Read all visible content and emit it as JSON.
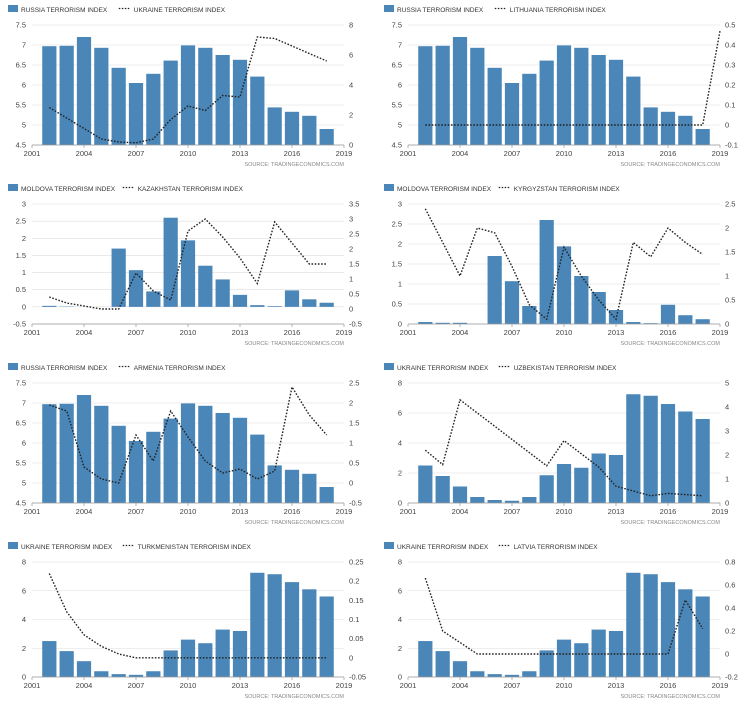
{
  "styles": {
    "bar_color": "#4a86b8",
    "line_color": "#222222",
    "axis_text": "#444444",
    "grid": "#dddddd",
    "source_text": "#888888"
  },
  "chart_data": [
    {
      "type": "bar+line",
      "legend": [
        "RUSSIA TERRORISM INDEX",
        "UKRAINE TERRORISM INDEX"
      ],
      "source": "SOURCE:  TRADINGECONOMICS.COM",
      "x_ticks": [
        "2001",
        "2004",
        "2007",
        "2010",
        "2013",
        "2016",
        "2019"
      ],
      "bars": {
        "name": "RUSSIA TERRORISM INDEX",
        "years": [
          2002,
          2003,
          2004,
          2005,
          2006,
          2007,
          2008,
          2009,
          2010,
          2011,
          2012,
          2013,
          2014,
          2015,
          2016,
          2017,
          2018
        ],
        "values": [
          6.97,
          6.98,
          7.2,
          6.93,
          6.43,
          6.05,
          6.28,
          6.61,
          6.99,
          6.93,
          6.75,
          6.63,
          6.21,
          5.44,
          5.33,
          5.23,
          4.9
        ]
      },
      "line": {
        "name": "UKRAINE TERRORISM INDEX",
        "years": [
          2002,
          2003,
          2004,
          2005,
          2006,
          2007,
          2008,
          2009,
          2010,
          2011,
          2012,
          2013,
          2014,
          2015,
          2016,
          2017,
          2018
        ],
        "values": [
          2.5,
          1.8,
          1.1,
          0.4,
          0.2,
          0.15,
          0.4,
          1.7,
          2.6,
          2.3,
          3.3,
          3.2,
          7.2,
          7.1,
          6.6,
          6.1,
          5.6
        ]
      },
      "left_axis": {
        "min": 4.5,
        "max": 7.5,
        "ticks": [
          "4.5",
          "5",
          "5.5",
          "6",
          "6.5",
          "7",
          "7.5"
        ]
      },
      "right_axis": {
        "min": 0,
        "max": 8,
        "ticks": [
          "0",
          "2",
          "4",
          "6",
          "8"
        ]
      }
    },
    {
      "type": "bar+line",
      "legend": [
        "RUSSIA TERRORISM INDEX",
        "LITHUANIA TERRORISM INDEX"
      ],
      "source": "SOURCE:  TRADINGECONOMICS.COM",
      "x_ticks": [
        "2001",
        "2004",
        "2007",
        "2010",
        "2013",
        "2016",
        "2019"
      ],
      "bars": {
        "name": "RUSSIA TERRORISM INDEX",
        "years": [
          2002,
          2003,
          2004,
          2005,
          2006,
          2007,
          2008,
          2009,
          2010,
          2011,
          2012,
          2013,
          2014,
          2015,
          2016,
          2017,
          2018
        ],
        "values": [
          6.97,
          6.98,
          7.2,
          6.93,
          6.43,
          6.05,
          6.28,
          6.61,
          6.99,
          6.93,
          6.75,
          6.63,
          6.21,
          5.44,
          5.33,
          5.23,
          4.9
        ]
      },
      "line": {
        "name": "LITHUANIA TERRORISM INDEX",
        "years": [
          2002,
          2003,
          2004,
          2005,
          2006,
          2007,
          2008,
          2009,
          2010,
          2011,
          2012,
          2013,
          2014,
          2015,
          2016,
          2017,
          2018,
          2019
        ],
        "values": [
          0,
          0,
          0,
          0,
          0,
          0,
          0,
          0,
          0,
          0,
          0,
          0,
          0,
          0,
          0,
          0,
          0,
          0.47
        ]
      },
      "left_axis": {
        "min": 4.5,
        "max": 7.5,
        "ticks": [
          "4.5",
          "5",
          "5.5",
          "6",
          "6.5",
          "7",
          "7.5"
        ]
      },
      "right_axis": {
        "min": -0.1,
        "max": 0.5,
        "ticks": [
          "-0.1",
          "0",
          "0.1",
          "0.2",
          "0.3",
          "0.4",
          "0.5"
        ]
      }
    },
    {
      "type": "bar+line",
      "legend": [
        "MOLDOVA TERRORISM INDEX",
        "KAZAKHSTAN TERRORISM INDEX"
      ],
      "source": "SOURCE:  TRADINGECONOMICS.COM",
      "x_ticks": [
        "2001",
        "2004",
        "2007",
        "2010",
        "2013",
        "2016",
        "2019"
      ],
      "bars": {
        "name": "MOLDOVA TERRORISM INDEX",
        "years": [
          2002,
          2003,
          2004,
          2005,
          2006,
          2007,
          2008,
          2009,
          2010,
          2011,
          2012,
          2013,
          2014,
          2015,
          2016,
          2017,
          2018
        ],
        "values": [
          0.03,
          0.01,
          0,
          0,
          1.7,
          1.07,
          0.45,
          2.6,
          1.94,
          1.2,
          0.8,
          0.35,
          0.05,
          0.02,
          0.48,
          0.22,
          0.12
        ]
      },
      "line": {
        "name": "KAZAKHSTAN TERRORISM INDEX",
        "years": [
          2002,
          2003,
          2004,
          2005,
          2006,
          2007,
          2008,
          2009,
          2010,
          2011,
          2012,
          2013,
          2014,
          2015,
          2016,
          2017,
          2018
        ],
        "values": [
          0.4,
          0.2,
          0.1,
          0,
          0,
          1.2,
          0.6,
          0.3,
          2.6,
          3.0,
          2.4,
          1.7,
          0.85,
          2.9,
          2.2,
          1.5,
          1.5
        ]
      },
      "left_axis": {
        "min": -0.5,
        "max": 3,
        "ticks": [
          "-0.5",
          "0",
          "0.5",
          "1",
          "1.5",
          "2",
          "2.5",
          "3"
        ]
      },
      "right_axis": {
        "min": -0.5,
        "max": 3.5,
        "ticks": [
          "-0.5",
          "0",
          "0.5",
          "1",
          "1.5",
          "2",
          "2.5",
          "3",
          "3.5"
        ]
      }
    },
    {
      "type": "bar+line",
      "legend": [
        "MOLDOVA TERRORISM INDEX",
        "KYRGYZSTAN TERRORISM INDEX"
      ],
      "source": "SOURCE:  TRADINGECONOMICS.COM",
      "x_ticks": [
        "2001",
        "2004",
        "2007",
        "2010",
        "2013",
        "2016",
        "2019"
      ],
      "bars": {
        "name": "MOLDOVA TERRORISM INDEX",
        "years": [
          2002,
          2003,
          2004,
          2005,
          2006,
          2007,
          2008,
          2009,
          2010,
          2011,
          2012,
          2013,
          2014,
          2015,
          2016,
          2017,
          2018
        ],
        "values": [
          0.05,
          0.03,
          0.03,
          0,
          1.7,
          1.07,
          0.45,
          2.6,
          1.94,
          1.2,
          0.8,
          0.35,
          0.05,
          0.02,
          0.48,
          0.22,
          0.12
        ]
      },
      "line": {
        "name": "KYRGYZSTAN TERRORISM INDEX",
        "years": [
          2002,
          2003,
          2004,
          2005,
          2006,
          2007,
          2008,
          2009,
          2010,
          2011,
          2012,
          2013,
          2014,
          2015,
          2016,
          2017,
          2018
        ],
        "values": [
          2.4,
          1.7,
          1.0,
          2.0,
          1.9,
          1.2,
          0.4,
          0.1,
          1.6,
          1.0,
          0.5,
          0.1,
          1.7,
          1.4,
          2.0,
          1.7,
          1.45
        ]
      },
      "left_axis": {
        "min": 0,
        "max": 3,
        "ticks": [
          "0",
          "0.5",
          "1",
          "1.5",
          "2",
          "2.5",
          "3"
        ]
      },
      "right_axis": {
        "min": 0,
        "max": 2.5,
        "ticks": [
          "0",
          "0.5",
          "1",
          "1.5",
          "2",
          "2.5"
        ]
      }
    },
    {
      "type": "bar+line",
      "legend": [
        "RUSSIA TERRORISM INDEX",
        "ARMENIA TERRORISM INDEX"
      ],
      "source": "SOURCE:  TRADINGECONOMICS.COM",
      "x_ticks": [
        "2001",
        "2004",
        "2007",
        "2010",
        "2013",
        "2016",
        "2019"
      ],
      "bars": {
        "name": "RUSSIA TERRORISM INDEX",
        "years": [
          2002,
          2003,
          2004,
          2005,
          2006,
          2007,
          2008,
          2009,
          2010,
          2011,
          2012,
          2013,
          2014,
          2015,
          2016,
          2017,
          2018
        ],
        "values": [
          6.97,
          6.98,
          7.2,
          6.93,
          6.43,
          6.05,
          6.28,
          6.61,
          6.99,
          6.93,
          6.75,
          6.63,
          6.21,
          5.44,
          5.33,
          5.23,
          4.9
        ]
      },
      "line": {
        "name": "ARMENIA TERRORISM INDEX",
        "years": [
          2002,
          2003,
          2004,
          2005,
          2006,
          2007,
          2008,
          2009,
          2010,
          2011,
          2012,
          2013,
          2014,
          2015,
          2016,
          2017,
          2018
        ],
        "values": [
          1.95,
          1.8,
          0.4,
          0.1,
          0,
          1.2,
          0.55,
          1.8,
          1.15,
          0.55,
          0.25,
          0.35,
          0.1,
          0.3,
          2.4,
          1.7,
          1.2
        ]
      },
      "left_axis": {
        "min": 4.5,
        "max": 7.5,
        "ticks": [
          "4.5",
          "5",
          "5.5",
          "6",
          "6.5",
          "7",
          "7.5"
        ]
      },
      "right_axis": {
        "min": -0.5,
        "max": 2.5,
        "ticks": [
          "-0.5",
          "0",
          "0.5",
          "1",
          "1.5",
          "2",
          "2.5"
        ]
      }
    },
    {
      "type": "bar+line",
      "legend": [
        "UKRAINE TERRORISM INDEX",
        "UZBEKISTAN TERRORISM INDEX"
      ],
      "source": "SOURCE:  TRADINGECONOMICS.COM",
      "x_ticks": [
        "2001",
        "2004",
        "2007",
        "2010",
        "2013",
        "2016",
        "2019"
      ],
      "bars": {
        "name": "UKRAINE TERRORISM INDEX",
        "years": [
          2002,
          2003,
          2004,
          2005,
          2006,
          2007,
          2008,
          2009,
          2010,
          2011,
          2012,
          2013,
          2014,
          2015,
          2016,
          2017,
          2018
        ],
        "values": [
          2.5,
          1.8,
          1.1,
          0.4,
          0.2,
          0.15,
          0.4,
          1.85,
          2.6,
          2.35,
          3.3,
          3.2,
          7.25,
          7.15,
          6.6,
          6.1,
          5.6
        ]
      },
      "line": {
        "name": "UZBEKISTAN TERRORISM INDEX",
        "years": [
          2002,
          2003,
          2004,
          2005,
          2006,
          2007,
          2008,
          2009,
          2010,
          2011,
          2012,
          2013,
          2014,
          2015,
          2016,
          2017,
          2018
        ],
        "values": [
          2.2,
          1.6,
          4.3,
          3.75,
          3.2,
          2.65,
          2.1,
          1.55,
          2.6,
          2.05,
          1.5,
          0.7,
          0.5,
          0.3,
          0.4,
          0.35,
          0.3
        ]
      },
      "left_axis": {
        "min": 0,
        "max": 8,
        "ticks": [
          "0",
          "2",
          "4",
          "6",
          "8"
        ]
      },
      "right_axis": {
        "min": 0,
        "max": 5,
        "ticks": [
          "0",
          "1",
          "2",
          "3",
          "4",
          "5"
        ]
      }
    },
    {
      "type": "bar+line",
      "legend": [
        "UKRAINE TERRORISM INDEX",
        "TURKMENISTAN TERRORISM INDEX"
      ],
      "source": "SOURCE:  TRADINGECONOMICS.COM",
      "x_ticks": [
        "2001",
        "2004",
        "2007",
        "2010",
        "2013",
        "2016",
        "2019"
      ],
      "bars": {
        "name": "UKRAINE TERRORISM INDEX",
        "years": [
          2002,
          2003,
          2004,
          2005,
          2006,
          2007,
          2008,
          2009,
          2010,
          2011,
          2012,
          2013,
          2014,
          2015,
          2016,
          2017,
          2018
        ],
        "values": [
          2.5,
          1.8,
          1.1,
          0.4,
          0.2,
          0.15,
          0.4,
          1.85,
          2.6,
          2.35,
          3.3,
          3.2,
          7.25,
          7.15,
          6.6,
          6.1,
          5.6
        ]
      },
      "line": {
        "name": "TURKMENISTAN TERRORISM INDEX",
        "years": [
          2002,
          2003,
          2004,
          2005,
          2006,
          2007,
          2008,
          2009,
          2010,
          2011,
          2012,
          2013,
          2014,
          2015,
          2016,
          2017,
          2018
        ],
        "values": [
          0.22,
          0.12,
          0.06,
          0.03,
          0.01,
          0,
          0,
          0,
          0,
          0,
          0,
          0,
          0,
          0,
          0,
          0,
          0
        ]
      },
      "left_axis": {
        "min": 0,
        "max": 8,
        "ticks": [
          "0",
          "2",
          "4",
          "6",
          "8"
        ]
      },
      "right_axis": {
        "min": -0.05,
        "max": 0.25,
        "ticks": [
          "-0.05",
          "0",
          "0.05",
          "0.1",
          "0.15",
          "0.2",
          "0.25"
        ]
      }
    },
    {
      "type": "bar+line",
      "legend": [
        "UKRAINE TERRORISM INDEX",
        "LATVIA TERRORISM INDEX"
      ],
      "source": "SOURCE:  TRADINGECONOMICS.COM",
      "x_ticks": [
        "2001",
        "2004",
        "2007",
        "2010",
        "2013",
        "2016",
        "2019"
      ],
      "bars": {
        "name": "UKRAINE TERRORISM INDEX",
        "years": [
          2002,
          2003,
          2004,
          2005,
          2006,
          2007,
          2008,
          2009,
          2010,
          2011,
          2012,
          2013,
          2014,
          2015,
          2016,
          2017,
          2018
        ],
        "values": [
          2.5,
          1.8,
          1.1,
          0.4,
          0.2,
          0.15,
          0.4,
          1.85,
          2.6,
          2.35,
          3.3,
          3.2,
          7.25,
          7.15,
          6.6,
          6.1,
          5.6
        ]
      },
      "line": {
        "name": "LATVIA TERRORISM INDEX",
        "years": [
          2002,
          2003,
          2004,
          2005,
          2006,
          2007,
          2008,
          2009,
          2010,
          2011,
          2012,
          2013,
          2014,
          2015,
          2016,
          2017,
          2018
        ],
        "values": [
          0.66,
          0.2,
          0.1,
          0,
          0,
          0,
          0,
          0,
          0,
          0,
          0,
          0,
          0,
          0,
          0,
          0.47,
          0.22
        ]
      },
      "left_axis": {
        "min": 0,
        "max": 8,
        "ticks": [
          "0",
          "2",
          "4",
          "6",
          "8"
        ]
      },
      "right_axis": {
        "min": -0.2,
        "max": 0.8,
        "ticks": [
          "-0.2",
          "0",
          "0.2",
          "0.4",
          "0.6",
          "0.8"
        ]
      }
    }
  ]
}
